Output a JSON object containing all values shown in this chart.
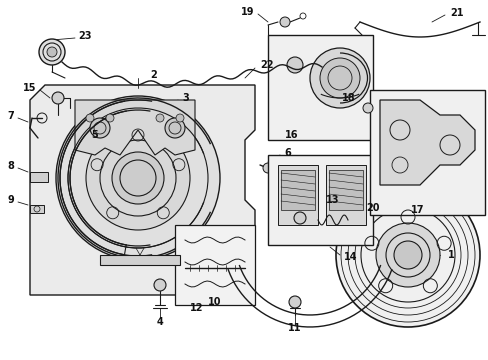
{
  "background_color": "#ffffff",
  "fig_width": 4.89,
  "fig_height": 3.6,
  "dpi": 100,
  "lc": "#1a1a1a",
  "gray_fill": "#e8e8e8",
  "gray_mid": "#d0d0d0",
  "gray_dark": "#b0b0b0",
  "label_fs": 7,
  "label_fs_small": 6.5
}
